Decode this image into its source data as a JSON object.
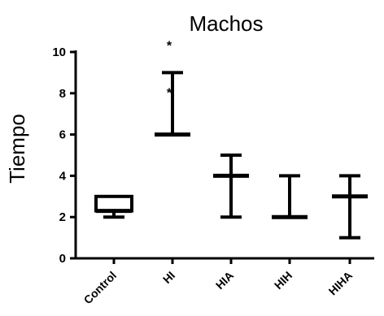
{
  "chart_data": {
    "type": "box",
    "title": "Machos",
    "xlabel": "",
    "ylabel": "Tiempo",
    "ylim": [
      0,
      10
    ],
    "yticks": [
      0,
      2,
      4,
      6,
      8,
      10
    ],
    "categories": [
      "Control",
      "HI",
      "HIA",
      "HIH",
      "HIHA"
    ],
    "boxes": [
      {
        "category": "Control",
        "min": 2,
        "q1": 2.3,
        "median": 2.3,
        "q3": 3,
        "max": 3
      },
      {
        "category": "HI",
        "min": 6,
        "q1": 6,
        "median": 6,
        "q3": 6,
        "max": 9
      },
      {
        "category": "HIA",
        "min": 2,
        "q1": 4,
        "median": 4,
        "q3": 4,
        "max": 5
      },
      {
        "category": "HIH",
        "min": 2,
        "q1": 2,
        "median": 2,
        "q3": 2,
        "max": 4
      },
      {
        "category": "HIHA",
        "min": 1,
        "q1": 3,
        "median": 3,
        "q3": 3,
        "max": 4
      }
    ],
    "annotations": [
      {
        "category": "HI",
        "y": 10.5,
        "text": "*"
      },
      {
        "category": "HI",
        "y": 8.2,
        "text": "*"
      }
    ]
  }
}
